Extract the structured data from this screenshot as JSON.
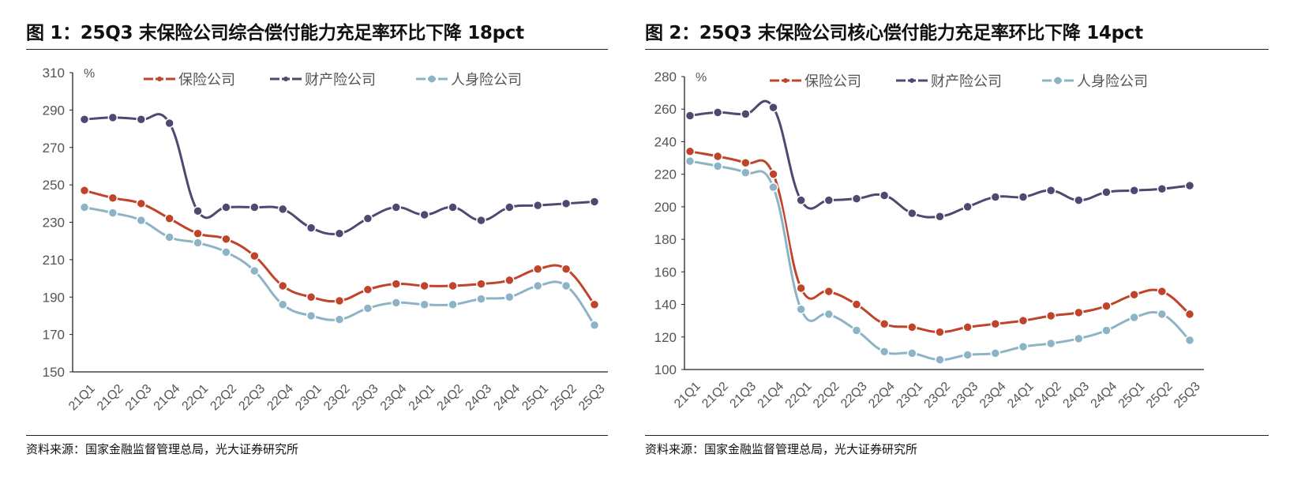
{
  "chart_data": [
    {
      "type": "line",
      "title": "图 1：25Q3 末保险公司综合偿付能力充足率环比下降 18pct",
      "source": "资料来源：国家金融监督管理总局，光大证券研究所",
      "ylabel": "%",
      "ylim": [
        150,
        310
      ],
      "yticks": [
        150,
        170,
        190,
        210,
        230,
        250,
        270,
        290,
        310
      ],
      "legend": "top",
      "grid": false,
      "categories": [
        "21Q1",
        "21Q2",
        "21Q3",
        "21Q4",
        "22Q1",
        "22Q2",
        "22Q3",
        "22Q4",
        "23Q1",
        "23Q2",
        "23Q3",
        "23Q4",
        "24Q1",
        "24Q2",
        "24Q3",
        "24Q4",
        "25Q1",
        "25Q2",
        "25Q3"
      ],
      "series": [
        {
          "name": "保险公司",
          "color": "#C0442A",
          "values": [
            247,
            243,
            240,
            232,
            224,
            221,
            212,
            196,
            190,
            188,
            194,
            197,
            196,
            196,
            197,
            199,
            205,
            205,
            186
          ]
        },
        {
          "name": "财产险公司",
          "color": "#4D4A72",
          "values": [
            285,
            286,
            285,
            283,
            236,
            238,
            238,
            237,
            227,
            224,
            232,
            238,
            234,
            238,
            231,
            238,
            239,
            240,
            241
          ]
        },
        {
          "name": "人身险公司",
          "color": "#8DB4C6",
          "values": [
            238,
            235,
            231,
            222,
            219,
            214,
            204,
            186,
            180,
            178,
            184,
            187,
            186,
            186,
            189,
            190,
            196,
            196,
            175
          ]
        }
      ]
    },
    {
      "type": "line",
      "title": "图 2：25Q3 末保险公司核心偿付能力充足率环比下降 14pct",
      "source": "资料来源：国家金融监督管理总局，光大证券研究所",
      "ylabel": "%",
      "ylim": [
        100,
        280
      ],
      "yticks": [
        100,
        120,
        140,
        160,
        180,
        200,
        220,
        240,
        260,
        280
      ],
      "legend": "top",
      "grid": false,
      "categories": [
        "21Q1",
        "21Q2",
        "21Q3",
        "21Q4",
        "22Q1",
        "22Q2",
        "22Q3",
        "22Q4",
        "23Q1",
        "23Q2",
        "23Q3",
        "23Q4",
        "24Q1",
        "24Q2",
        "24Q3",
        "24Q4",
        "25Q1",
        "25Q2",
        "25Q3"
      ],
      "series": [
        {
          "name": "保险公司",
          "color": "#C0442A",
          "values": [
            234,
            231,
            227,
            220,
            150,
            148,
            140,
            128,
            126,
            123,
            126,
            128,
            130,
            133,
            135,
            139,
            146,
            148,
            134
          ]
        },
        {
          "name": "财产险公司",
          "color": "#4D4A72",
          "values": [
            256,
            258,
            257,
            261,
            204,
            204,
            205,
            207,
            196,
            194,
            200,
            206,
            206,
            210,
            204,
            209,
            210,
            211,
            213
          ]
        },
        {
          "name": "人身险公司",
          "color": "#8DB4C6",
          "values": [
            228,
            225,
            221,
            212,
            137,
            134,
            124,
            111,
            110,
            106,
            109,
            110,
            114,
            116,
            119,
            124,
            132,
            134,
            118
          ]
        }
      ]
    }
  ]
}
